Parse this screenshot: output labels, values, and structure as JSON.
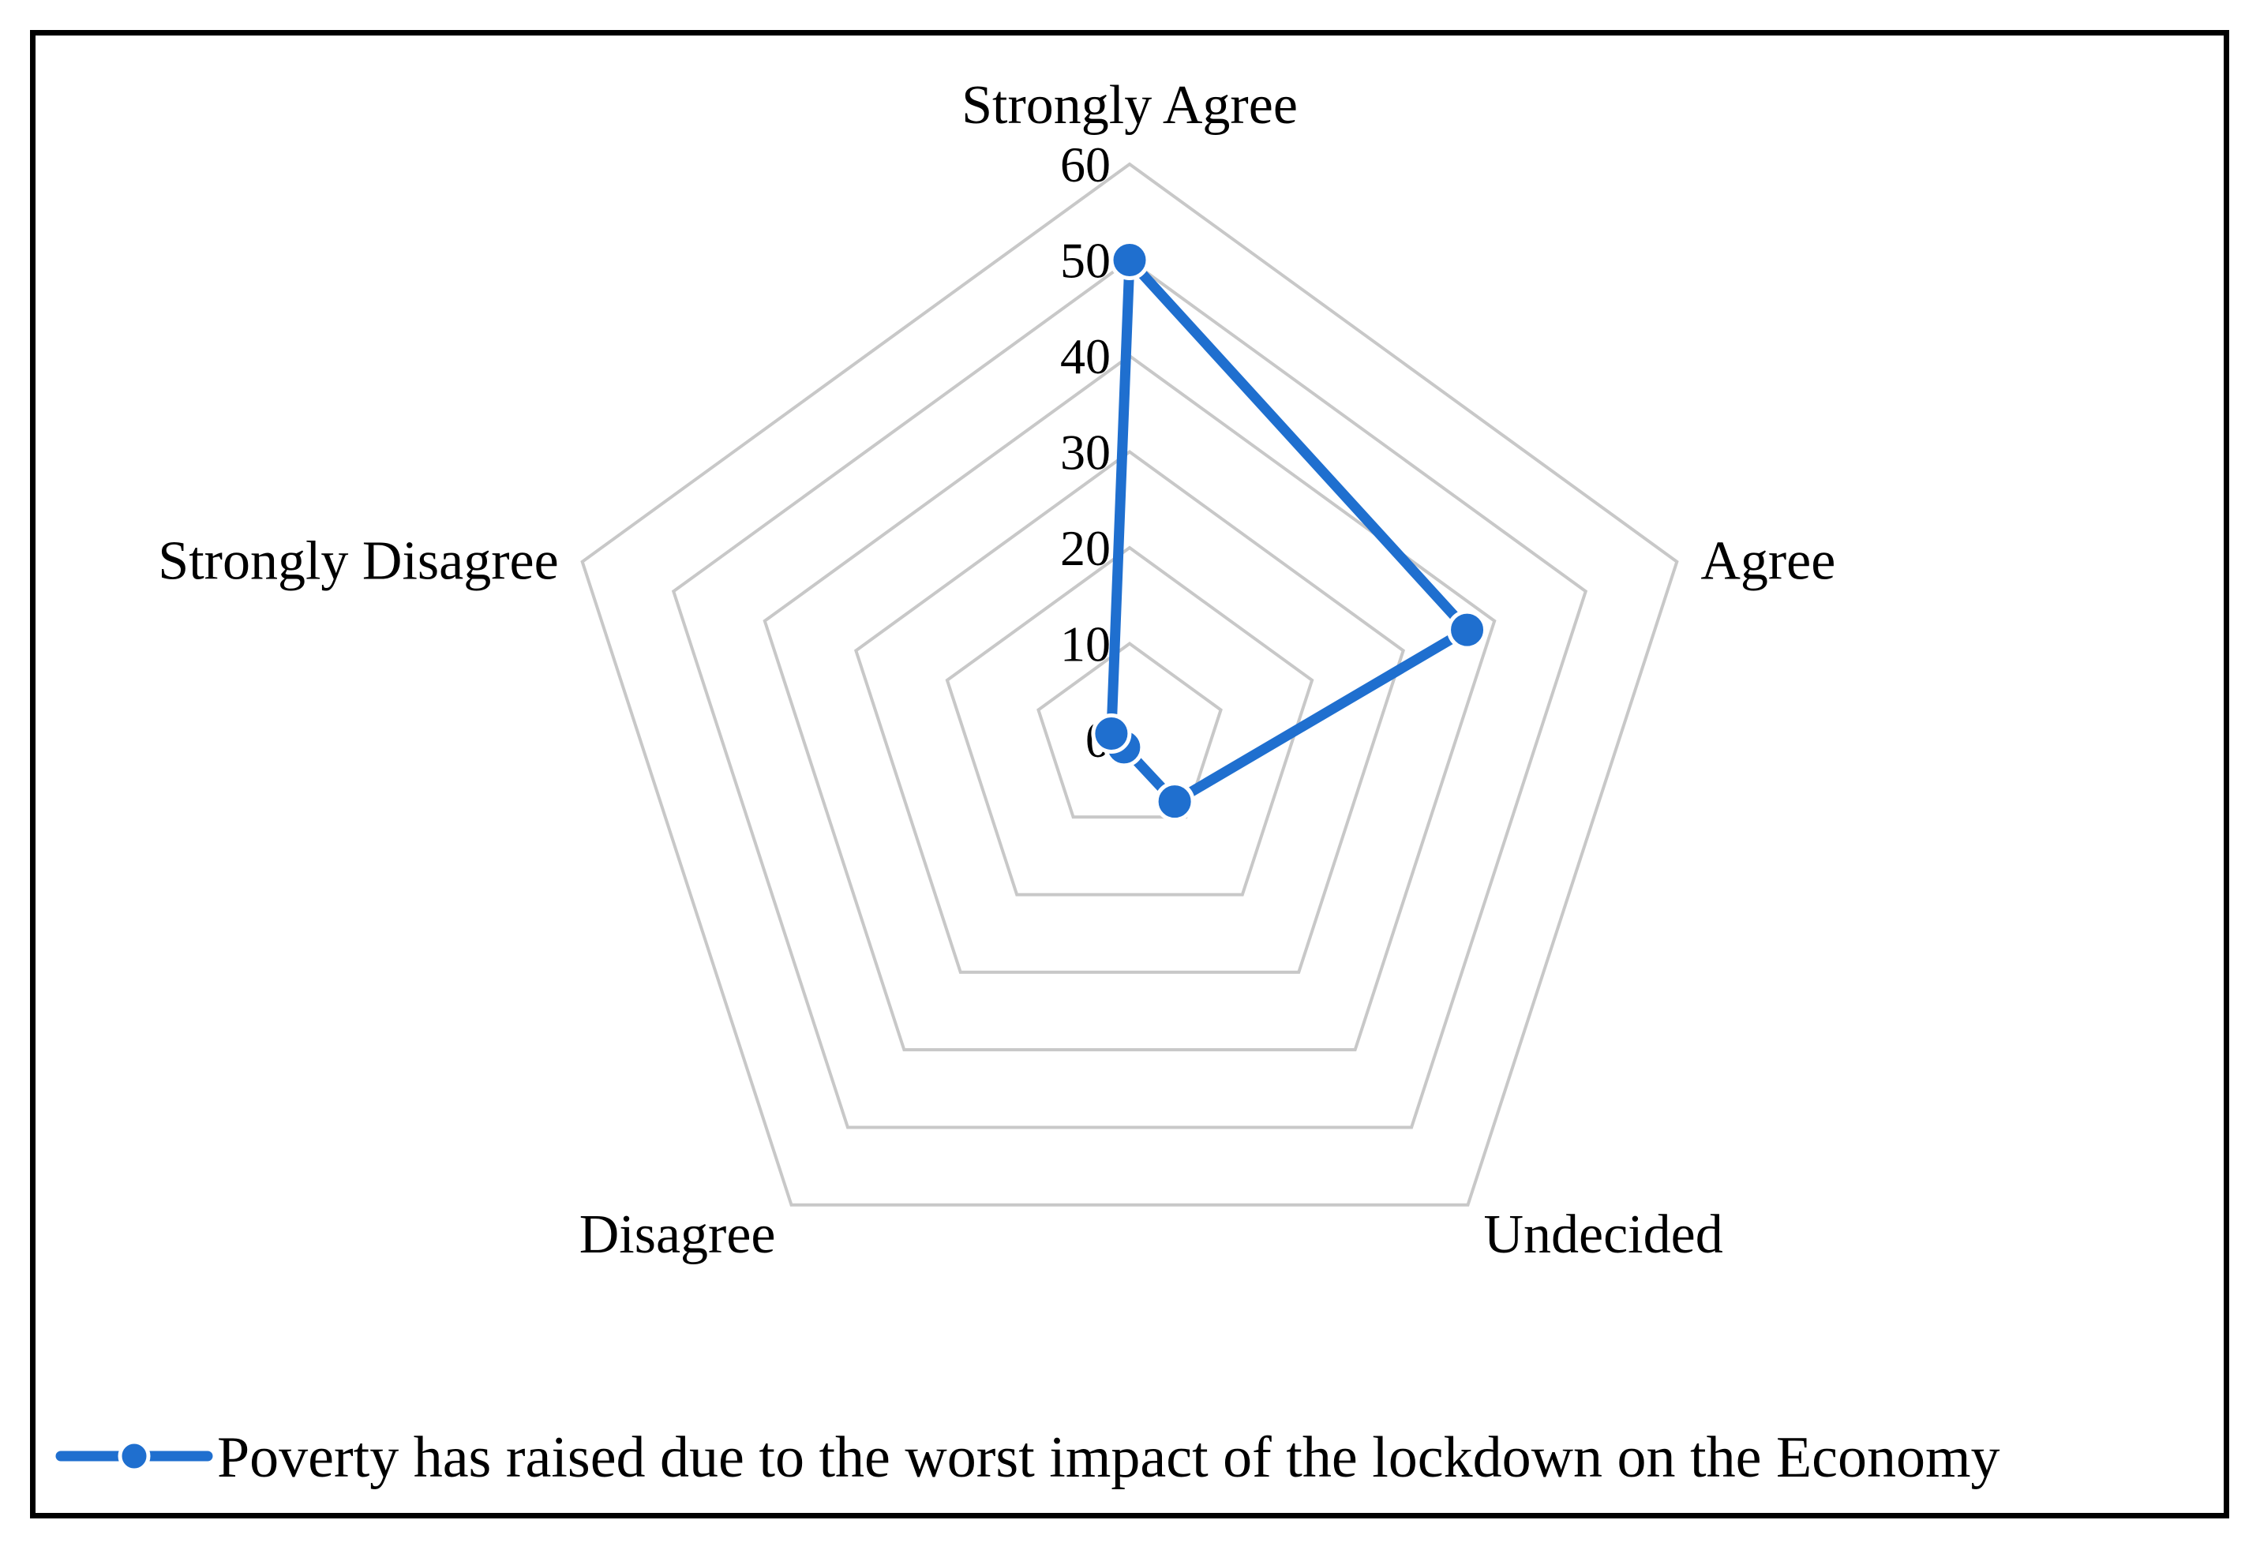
{
  "chart_data": {
    "type": "radar",
    "categories": [
      "Strongly Agree",
      "Agree",
      "Undecided",
      "Disagree",
      "Strongly Disagree"
    ],
    "series": [
      {
        "name": "Poverty has raised due to the worst impact of the lockdown on the Economy",
        "values": [
          50,
          37,
          8,
          1,
          2
        ],
        "color": "#1F6FCF"
      }
    ],
    "rlim": [
      0,
      60
    ],
    "ticks": [
      0,
      10,
      20,
      30,
      40,
      50,
      60
    ],
    "grid": true,
    "grid_color": "#C8C8C8",
    "legend_position": "bottom"
  }
}
